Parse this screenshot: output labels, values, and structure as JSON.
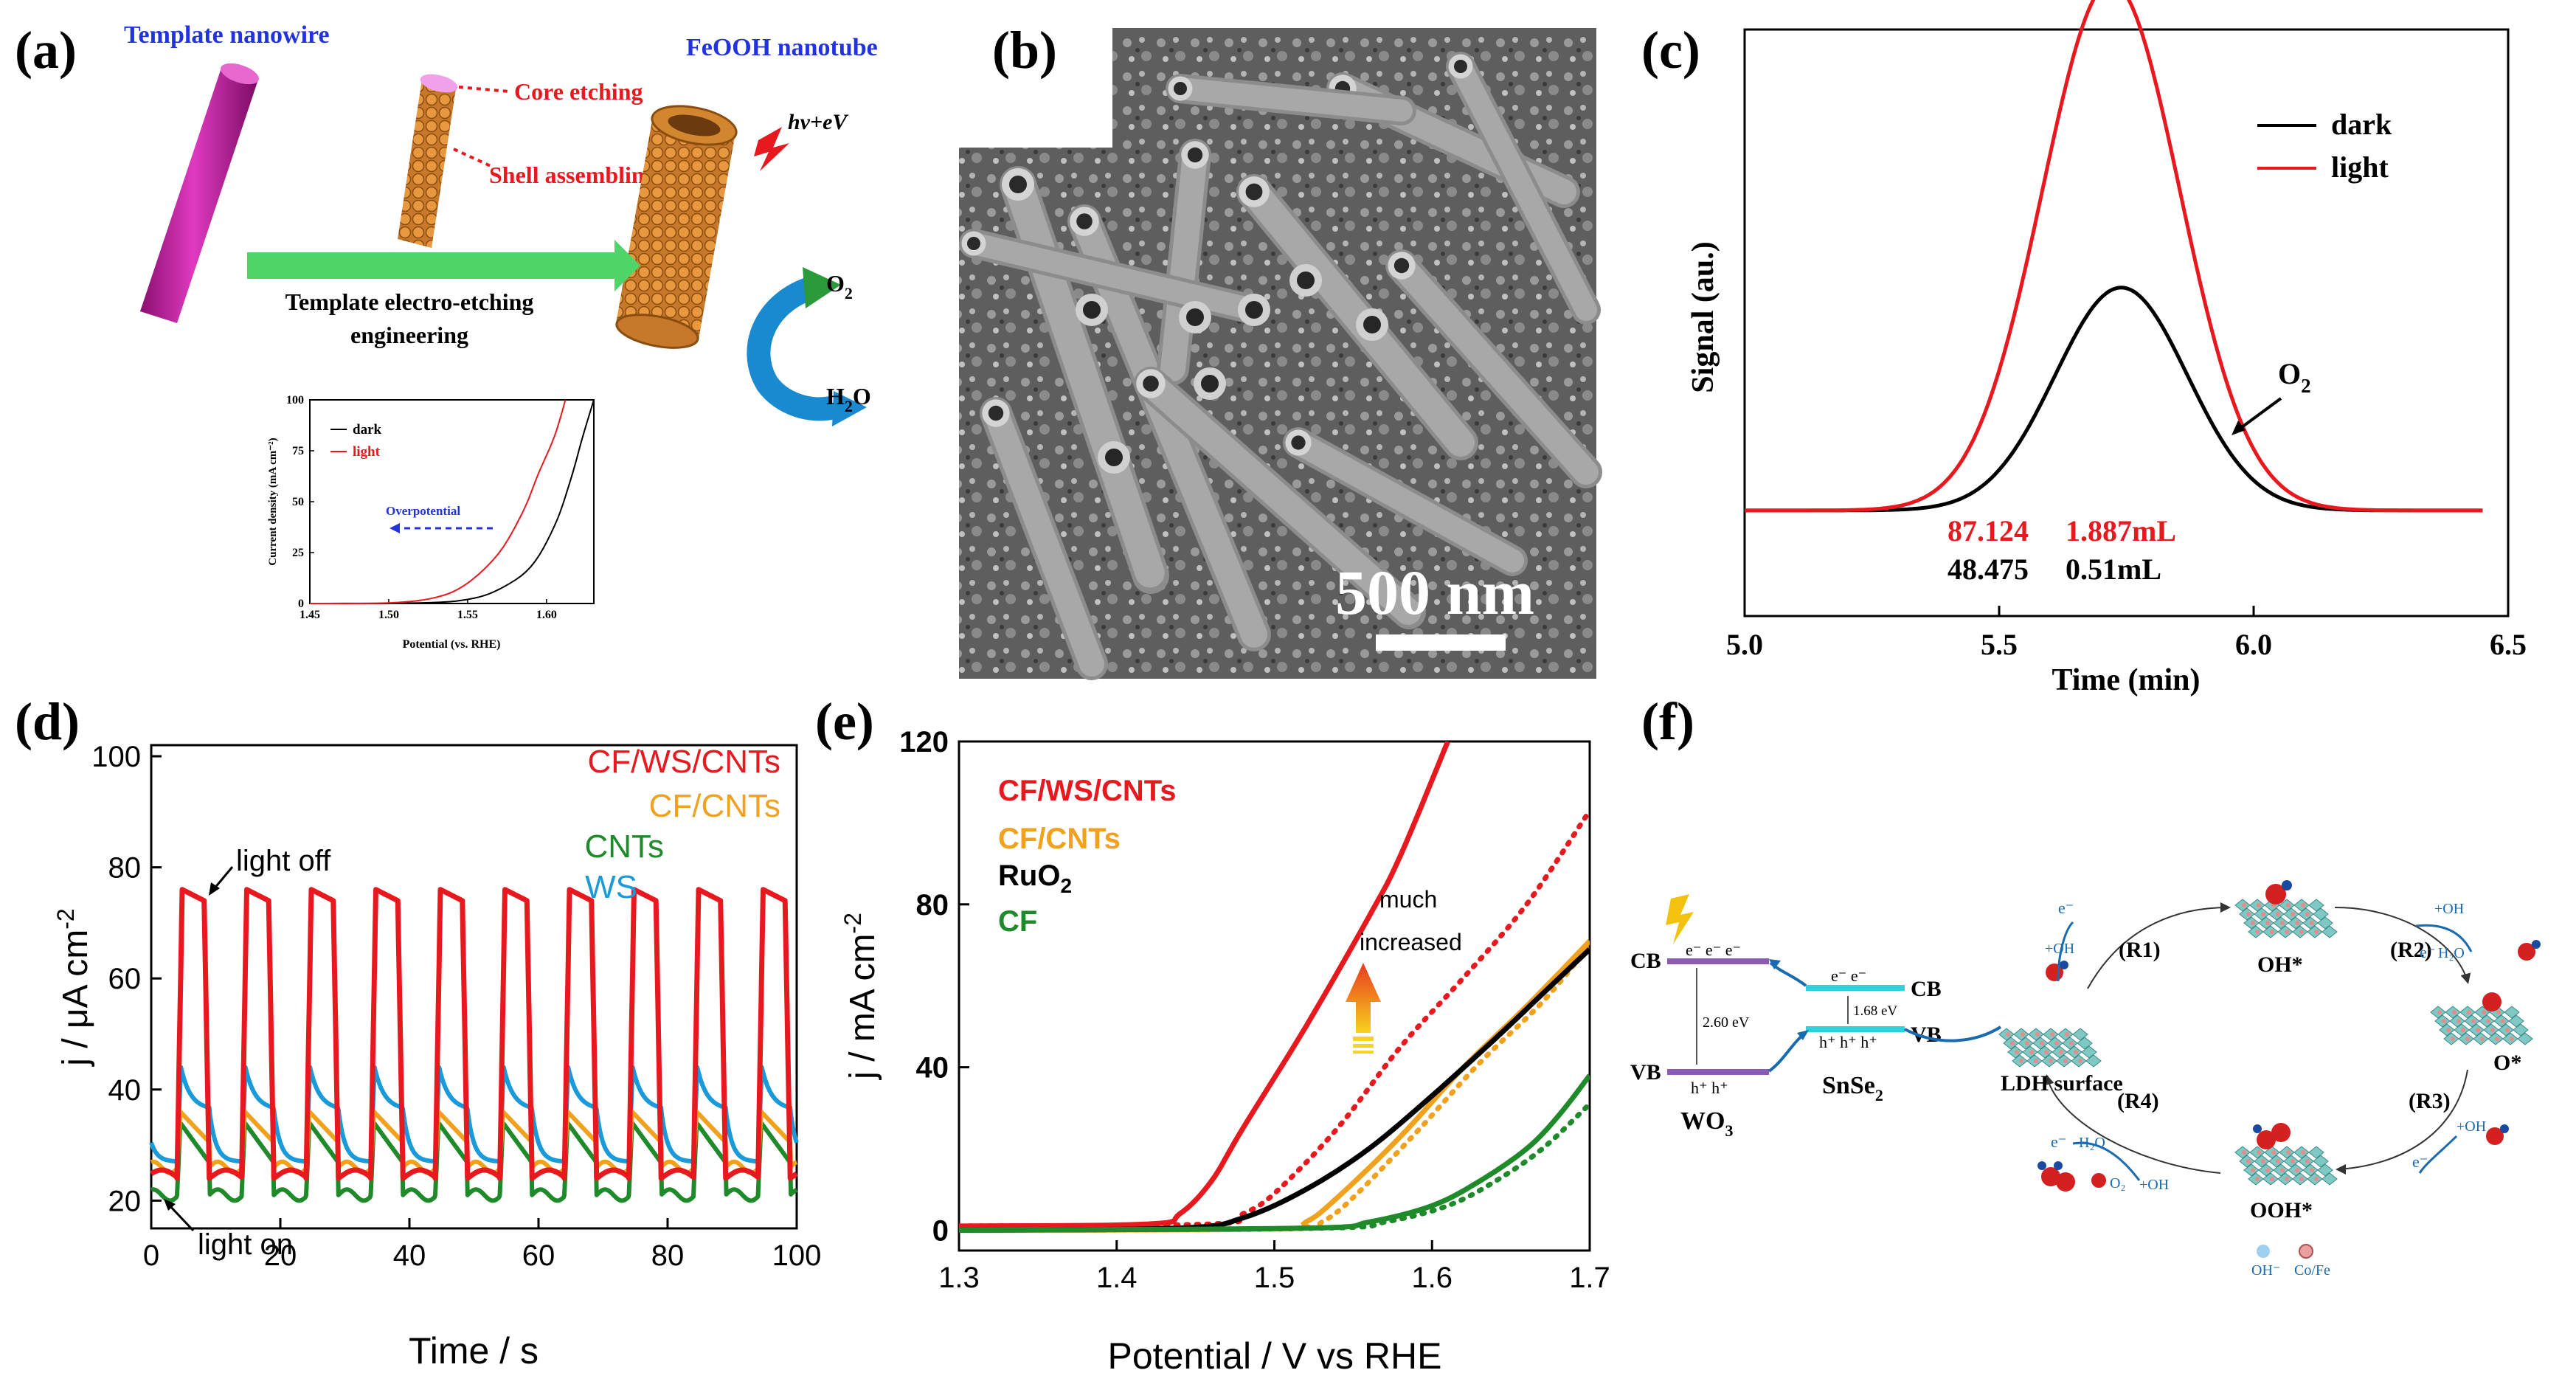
{
  "panel_labels": [
    "(a)",
    "(b)",
    "(c)",
    "(d)",
    "(e)",
    "(f)"
  ],
  "colors": {
    "red": "#e8191e",
    "black": "#000000",
    "orange": "#f0a21e",
    "green": "#1e8a2a",
    "blue": "#1a9ad8",
    "magenta": "#c4179c",
    "copper": "#d2862e",
    "arrow_green": "#4fd46a",
    "text_red": "#e8191e",
    "text_blue": "#2233dd",
    "purple": "#8c5ab4",
    "cyan": "#2ad4de"
  },
  "panel_a": {
    "template_label": "Template nanowire",
    "tube_label": "FeOOH nanotube",
    "core_etching": "Core etching",
    "shell_assembling": "Shell assembling",
    "hv": "hv+eV",
    "process_line1": "Template electro-etching",
    "process_line2": "engineering",
    "o2": "O",
    "o2_sub": "2",
    "h2o": "H",
    "h2o_sub": "2",
    "h2o_end": "O",
    "inset": {
      "type": "line",
      "xlabel": "Potential (vs. RHE)",
      "ylabel": "Current density (mA cm⁻²)",
      "xlim": [
        1.45,
        1.63
      ],
      "ylim": [
        0,
        100
      ],
      "xticks": [
        "1.45",
        "1.50",
        "1.55",
        "1.60"
      ],
      "yticks": [
        "0",
        "25",
        "50",
        "75",
        "100"
      ],
      "annotation": "Overpotential",
      "series": [
        {
          "name": "dark",
          "color": "#000000",
          "points": [
            [
              1.45,
              0
            ],
            [
              1.52,
              0.3
            ],
            [
              1.55,
              2
            ],
            [
              1.57,
              7
            ],
            [
              1.59,
              18
            ],
            [
              1.605,
              38
            ],
            [
              1.615,
              60
            ],
            [
              1.623,
              82
            ],
            [
              1.63,
              100
            ]
          ]
        },
        {
          "name": "light",
          "color": "#e8191e",
          "points": [
            [
              1.45,
              0
            ],
            [
              1.5,
              0.3
            ],
            [
              1.53,
              3
            ],
            [
              1.55,
              10
            ],
            [
              1.57,
              25
            ],
            [
              1.585,
              45
            ],
            [
              1.595,
              64
            ],
            [
              1.605,
              82
            ],
            [
              1.612,
              100
            ]
          ]
        }
      ]
    }
  },
  "panel_b": {
    "scale_label": "500 nm"
  },
  "chart_data": [
    {
      "panel": "c",
      "type": "line",
      "title": "",
      "xlabel": "Time (min)",
      "ylabel": "Signal (au.)",
      "xlim": [
        5.0,
        6.5
      ],
      "ylim": [
        0,
        1
      ],
      "xticks": [
        "5.0",
        "5.5",
        "6.0",
        "6.5"
      ],
      "legend": [
        "dark",
        "light"
      ],
      "legend_position": "top-right",
      "peak_annotation": "O",
      "peak_annotation_sub": "2",
      "light_area": "87.124",
      "light_volume": "1.887mL",
      "dark_area": "48.475",
      "dark_volume": "0.51mL",
      "series": [
        {
          "name": "dark",
          "color": "#000000",
          "baseline": 0.18,
          "peak_x": 5.74,
          "peak_height": 0.38,
          "sigma": 0.13,
          "x_range": [
            5.0,
            6.45
          ]
        },
        {
          "name": "light",
          "color": "#e8191e",
          "baseline": 0.18,
          "peak_x": 5.72,
          "peak_height": 0.9,
          "sigma": 0.135,
          "x_range": [
            5.0,
            6.45
          ]
        }
      ]
    },
    {
      "panel": "d",
      "type": "line",
      "xlabel": "Time / s",
      "ylabel": "j  / μA cm",
      "ylabel_sup": "-2",
      "xlim": [
        0,
        100
      ],
      "ylim": [
        15,
        102
      ],
      "xticks": [
        "0",
        "20",
        "40",
        "60",
        "80",
        "100"
      ],
      "yticks": [
        "20",
        "40",
        "60",
        "80",
        "100"
      ],
      "legend": [
        "CF/WS/CNTs",
        "CF/CNTs",
        "CNTs",
        "WS"
      ],
      "legend_position": "top-right",
      "annotation_off": "light off",
      "annotation_on": "light on",
      "period": 10,
      "series": [
        {
          "name": "CF/WS/CNTs",
          "color": "#e8191e",
          "high": 76,
          "low": 24,
          "shape": "square"
        },
        {
          "name": "CF/CNTs",
          "color": "#f0a21e",
          "high": 36,
          "low": 26,
          "shape": "spike"
        },
        {
          "name": "CNTs",
          "color": "#1e8a2a",
          "high": 34,
          "low": 21,
          "shape": "spike"
        },
        {
          "name": "WS",
          "color": "#1a9ad8",
          "high": 44,
          "low": 27,
          "shape": "decay"
        }
      ]
    },
    {
      "panel": "e",
      "type": "line",
      "xlabel": "Potential / V vs RHE",
      "ylabel": "j / mA cm",
      "ylabel_sup": "-2",
      "xlim": [
        1.3,
        1.7
      ],
      "ylim": [
        -5,
        120
      ],
      "xticks": [
        "1.3",
        "1.4",
        "1.5",
        "1.6",
        "1.7"
      ],
      "yticks": [
        "0",
        "40",
        "80",
        "120"
      ],
      "legend": [
        "CF/WS/CNTs",
        "CF/CNTs",
        "RuO",
        "CF"
      ],
      "legend_sub": [
        "",
        "",
        "2",
        ""
      ],
      "legend_position": "top-left",
      "annotation_line1": "much",
      "annotation_line2": "increased",
      "series": [
        {
          "name": "CF/WS/CNTs",
          "color": "#e8191e",
          "dash": false,
          "points": [
            [
              1.3,
              1
            ],
            [
              1.42,
              1.5
            ],
            [
              1.44,
              4
            ],
            [
              1.46,
              12
            ],
            [
              1.48,
              25
            ],
            [
              1.52,
              50
            ],
            [
              1.56,
              77
            ],
            [
              1.58,
              92
            ],
            [
              1.61,
              120
            ]
          ]
        },
        {
          "name": "CF/WS/CNTs dark",
          "color": "#e8191e",
          "dash": true,
          "points": [
            [
              1.3,
              1
            ],
            [
              1.46,
              1.5
            ],
            [
              1.48,
              4
            ],
            [
              1.5,
              9
            ],
            [
              1.54,
              25
            ],
            [
              1.58,
              45
            ],
            [
              1.62,
              62
            ],
            [
              1.66,
              80
            ],
            [
              1.7,
              103
            ]
          ]
        },
        {
          "name": "CF/CNTs",
          "color": "#f0a21e",
          "dash": false,
          "points": [
            [
              1.3,
              0
            ],
            [
              1.5,
              0.3
            ],
            [
              1.52,
              2
            ],
            [
              1.54,
              8
            ],
            [
              1.58,
              23
            ],
            [
              1.62,
              40
            ],
            [
              1.66,
              55
            ],
            [
              1.7,
              71
            ]
          ]
        },
        {
          "name": "CF/CNTs dark",
          "color": "#f0a21e",
          "dash": true,
          "points": [
            [
              1.3,
              0
            ],
            [
              1.51,
              0.3
            ],
            [
              1.53,
              2
            ],
            [
              1.55,
              8
            ],
            [
              1.59,
              24
            ],
            [
              1.63,
              41
            ],
            [
              1.67,
              56
            ],
            [
              1.7,
              70
            ]
          ]
        },
        {
          "name": "RuO2",
          "color": "#000000",
          "dash": false,
          "points": [
            [
              1.3,
              0
            ],
            [
              1.44,
              0.5
            ],
            [
              1.48,
              3
            ],
            [
              1.52,
              10
            ],
            [
              1.56,
              20
            ],
            [
              1.6,
              33
            ],
            [
              1.64,
              47
            ],
            [
              1.67,
              58
            ],
            [
              1.7,
              69
            ]
          ]
        },
        {
          "name": "CF",
          "color": "#1e8a2a",
          "dash": false,
          "points": [
            [
              1.3,
              0
            ],
            [
              1.52,
              0.5
            ],
            [
              1.56,
              2
            ],
            [
              1.6,
              6
            ],
            [
              1.63,
              12
            ],
            [
              1.66,
              20
            ],
            [
              1.68,
              28
            ],
            [
              1.7,
              38
            ]
          ]
        },
        {
          "name": "CF dark",
          "color": "#1e8a2a",
          "dash": true,
          "points": [
            [
              1.3,
              0
            ],
            [
              1.53,
              0.5
            ],
            [
              1.57,
              2
            ],
            [
              1.61,
              6
            ],
            [
              1.64,
              12
            ],
            [
              1.67,
              20
            ],
            [
              1.7,
              31
            ]
          ]
        }
      ]
    }
  ],
  "panel_f": {
    "cb": "CB",
    "vb": "VB",
    "cb2": "CB",
    "vb2": "VB",
    "e_minus": "e⁻",
    "h_plus": "h⁺",
    "gap_wo3": "2.60 eV",
    "gap_snse2": "1.68 eV",
    "wo3": "WO",
    "wo3_sub": "3",
    "snse2": "SnSe",
    "snse2_sub": "2",
    "ldh_surface": "LDH surface",
    "r1": "(R1)",
    "r2": "(R2)",
    "r3": "(R3)",
    "r4": "(R4)",
    "oh_star": "OH*",
    "o_star": "O*",
    "ooh_star": "OOH*",
    "plus_oh": "+OH",
    "h2o": "H₂O",
    "o2": "O₂",
    "legend_oh": "OH⁻",
    "legend_cofe": "Co/Fe"
  }
}
